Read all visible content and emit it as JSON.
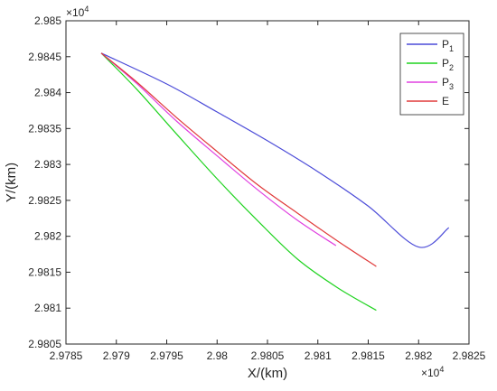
{
  "chart_data": {
    "type": "line",
    "title": "",
    "xlabel": "X/(km)",
    "ylabel": "Y/(km)",
    "x_exponent": "×10",
    "x_exponent_power": "4",
    "y_exponent": "×10",
    "y_exponent_power": "4",
    "xlim": [
      2.9785,
      2.9825
    ],
    "ylim": [
      2.9805,
      2.985
    ],
    "xticks": [
      2.9785,
      2.979,
      2.9795,
      2.98,
      2.9805,
      2.981,
      2.9815,
      2.982,
      2.9825
    ],
    "xtick_labels": [
      "2.9785",
      "2.979",
      "2.9795",
      "2.98",
      "2.9805",
      "2.981",
      "2.9815",
      "2.982",
      "2.9825"
    ],
    "yticks": [
      2.9805,
      2.981,
      2.9815,
      2.982,
      2.9825,
      2.983,
      2.9835,
      2.984,
      2.9845,
      2.985
    ],
    "ytick_labels": [
      "2.9805",
      "2.981",
      "2.9815",
      "2.982",
      "2.9825",
      "2.983",
      "2.9835",
      "2.984",
      "2.9845",
      "2.985"
    ],
    "grid": false,
    "legend_position": "top-right",
    "series": [
      {
        "name": "P",
        "subscript": "1",
        "color": "#4b4bd8",
        "x": [
          2.97885,
          2.9795,
          2.98,
          2.9805,
          2.981,
          2.9815,
          2.982,
          2.9823
        ],
        "y": [
          2.98455,
          2.98412,
          2.98373,
          2.98333,
          2.9829,
          2.98242,
          2.98185,
          2.98212
        ]
      },
      {
        "name": "P",
        "subscript": "2",
        "color": "#1fd31f",
        "x": [
          2.97885,
          2.9792,
          2.9796,
          2.98,
          2.9804,
          2.9808,
          2.9812,
          2.98158
        ],
        "y": [
          2.98455,
          2.98405,
          2.98342,
          2.9828,
          2.98222,
          2.98168,
          2.98128,
          2.98097
        ]
      },
      {
        "name": "P",
        "subscript": "3",
        "color": "#e040e0",
        "x": [
          2.97885,
          2.9792,
          2.9796,
          2.98,
          2.9804,
          2.9808,
          2.98118
        ],
        "y": [
          2.98455,
          2.98413,
          2.9836,
          2.98312,
          2.98265,
          2.98222,
          2.98187
        ]
      },
      {
        "name": "E",
        "subscript": "",
        "color": "#e03a3a",
        "x": [
          2.97885,
          2.9792,
          2.9796,
          2.98,
          2.9804,
          2.9808,
          2.9812,
          2.98158
        ],
        "y": [
          2.98455,
          2.98415,
          2.98365,
          2.98318,
          2.98272,
          2.98232,
          2.98193,
          2.98158
        ]
      }
    ]
  }
}
